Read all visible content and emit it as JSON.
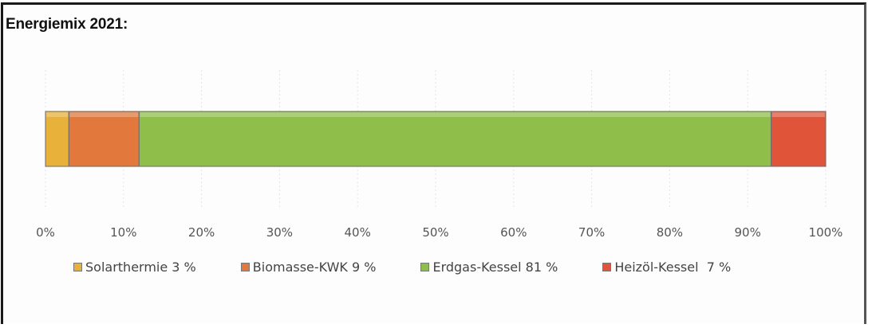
{
  "chart_data": {
    "type": "bar",
    "orientation": "horizontal",
    "stacked": "100%",
    "title": "Energiemix 2021:",
    "xlim": [
      0,
      100
    ],
    "x_ticks": [
      "0%",
      "10%",
      "20%",
      "30%",
      "40%",
      "50%",
      "60%",
      "70%",
      "80%",
      "90%",
      "100%"
    ],
    "grid": true,
    "legend_position": "bottom",
    "series": [
      {
        "name": "Solarthermie 3 %",
        "value": 3,
        "color": "#e8b13a"
      },
      {
        "name": "Biomasse-KWK 9 %",
        "value": 9,
        "color": "#e2783c"
      },
      {
        "name": "Erdgas-Kessel 81 %",
        "value": 81,
        "color": "#8fbf4a"
      },
      {
        "name": "Heizöl-Kessel  7 %",
        "value": 7,
        "color": "#e0553a"
      }
    ]
  }
}
